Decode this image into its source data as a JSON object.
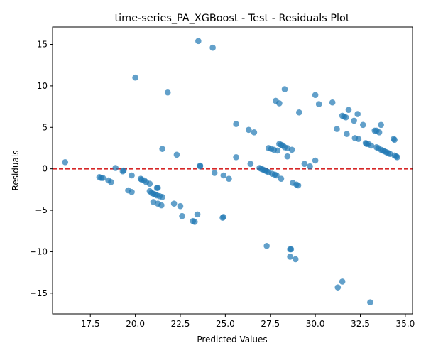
{
  "chart_data": {
    "type": "scatter",
    "title": "time-series_PA_XGBoost - Test - Residuals Plot",
    "xlabel": "Predicted Values",
    "ylabel": "Residuals",
    "xlim": [
      15.4,
      35.4
    ],
    "ylim": [
      -17.5,
      17.1
    ],
    "x_ticks": [
      17.5,
      20.0,
      22.5,
      25.0,
      27.5,
      30.0,
      32.5,
      35.0
    ],
    "x_tick_labels": [
      "17.5",
      "20.0",
      "22.5",
      "25.0",
      "27.5",
      "30.0",
      "32.5",
      "35.0"
    ],
    "y_ticks": [
      -15,
      -10,
      -5,
      0,
      5,
      10,
      15
    ],
    "y_tick_labels": [
      "−15",
      "−10",
      "−5",
      "0",
      "5",
      "10",
      "15"
    ],
    "grid": false,
    "reference_line": {
      "y": 0,
      "color": "#d62728",
      "style": "dashed"
    },
    "marker_color": "#1f77b4",
    "marker_opacity": 0.7,
    "points": [
      [
        16.1,
        0.8
      ],
      [
        18.0,
        -1.0
      ],
      [
        18.1,
        -1.1
      ],
      [
        18.2,
        -1.1
      ],
      [
        18.5,
        -1.4
      ],
      [
        18.65,
        -1.6
      ],
      [
        18.9,
        0.1
      ],
      [
        19.3,
        -0.3
      ],
      [
        19.35,
        -0.2
      ],
      [
        19.6,
        -2.6
      ],
      [
        19.8,
        -2.8
      ],
      [
        19.8,
        -0.8
      ],
      [
        20.0,
        11.0
      ],
      [
        20.3,
        -1.2
      ],
      [
        20.35,
        -1.3
      ],
      [
        20.5,
        -1.4
      ],
      [
        20.6,
        -1.6
      ],
      [
        20.8,
        -1.8
      ],
      [
        20.8,
        -2.7
      ],
      [
        20.9,
        -2.9
      ],
      [
        21.0,
        -3.0
      ],
      [
        21.1,
        -3.1
      ],
      [
        21.2,
        -3.2
      ],
      [
        21.35,
        -3.3
      ],
      [
        21.5,
        -3.4
      ],
      [
        21.0,
        -4.0
      ],
      [
        21.25,
        -4.2
      ],
      [
        21.45,
        -4.4
      ],
      [
        21.25,
        -2.3
      ],
      [
        21.2,
        -2.3
      ],
      [
        21.5,
        2.4
      ],
      [
        21.8,
        9.2
      ],
      [
        22.15,
        -4.2
      ],
      [
        22.3,
        1.7
      ],
      [
        22.5,
        -4.5
      ],
      [
        22.6,
        -5.7
      ],
      [
        23.2,
        -6.3
      ],
      [
        23.3,
        -6.4
      ],
      [
        23.45,
        -5.5
      ],
      [
        23.5,
        15.4
      ],
      [
        23.6,
        0.3
      ],
      [
        23.6,
        0.4
      ],
      [
        24.3,
        14.6
      ],
      [
        24.4,
        -0.5
      ],
      [
        24.85,
        -5.9
      ],
      [
        24.9,
        -5.8
      ],
      [
        24.9,
        -0.8
      ],
      [
        25.2,
        -1.2
      ],
      [
        25.6,
        5.4
      ],
      [
        25.6,
        1.4
      ],
      [
        26.3,
        4.7
      ],
      [
        26.4,
        0.6
      ],
      [
        26.6,
        4.4
      ],
      [
        26.9,
        0.1
      ],
      [
        27.0,
        0.0
      ],
      [
        27.1,
        -0.1
      ],
      [
        27.2,
        -0.2
      ],
      [
        27.3,
        -0.3
      ],
      [
        27.4,
        -0.4
      ],
      [
        27.3,
        -9.3
      ],
      [
        27.4,
        2.5
      ],
      [
        27.55,
        2.4
      ],
      [
        27.7,
        2.3
      ],
      [
        27.9,
        2.2
      ],
      [
        27.6,
        -0.6
      ],
      [
        27.75,
        -0.7
      ],
      [
        27.85,
        -0.8
      ],
      [
        28.1,
        -1.2
      ],
      [
        27.8,
        8.2
      ],
      [
        28.0,
        7.9
      ],
      [
        28.0,
        3.0
      ],
      [
        28.1,
        2.9
      ],
      [
        28.2,
        2.8
      ],
      [
        28.3,
        2.6
      ],
      [
        28.45,
        2.5
      ],
      [
        28.3,
        9.6
      ],
      [
        28.45,
        1.5
      ],
      [
        28.6,
        -9.7
      ],
      [
        28.65,
        -9.7
      ],
      [
        28.6,
        -10.6
      ],
      [
        28.9,
        -10.9
      ],
      [
        28.7,
        2.3
      ],
      [
        28.75,
        -1.7
      ],
      [
        28.95,
        -1.9
      ],
      [
        29.05,
        -2.0
      ],
      [
        29.1,
        6.8
      ],
      [
        29.4,
        0.6
      ],
      [
        29.7,
        0.3
      ],
      [
        30.0,
        8.9
      ],
      [
        30.0,
        1.0
      ],
      [
        30.2,
        7.8
      ],
      [
        30.95,
        8.0
      ],
      [
        31.2,
        4.8
      ],
      [
        31.25,
        -14.3
      ],
      [
        31.5,
        6.4
      ],
      [
        31.6,
        6.3
      ],
      [
        31.7,
        6.2
      ],
      [
        31.5,
        -13.6
      ],
      [
        31.75,
        4.2
      ],
      [
        31.85,
        7.1
      ],
      [
        32.15,
        5.8
      ],
      [
        32.2,
        3.7
      ],
      [
        32.4,
        3.6
      ],
      [
        32.35,
        6.6
      ],
      [
        32.65,
        5.3
      ],
      [
        32.8,
        3.1
      ],
      [
        32.85,
        3.0
      ],
      [
        32.95,
        3.0
      ],
      [
        33.1,
        2.8
      ],
      [
        33.05,
        -16.1
      ],
      [
        33.3,
        4.6
      ],
      [
        33.4,
        4.6
      ],
      [
        33.55,
        4.4
      ],
      [
        33.65,
        5.3
      ],
      [
        33.4,
        2.6
      ],
      [
        33.5,
        2.5
      ],
      [
        33.65,
        2.3
      ],
      [
        33.75,
        2.2
      ],
      [
        33.85,
        2.1
      ],
      [
        33.95,
        2.0
      ],
      [
        34.05,
        1.9
      ],
      [
        34.15,
        1.8
      ],
      [
        34.35,
        3.6
      ],
      [
        34.4,
        3.5
      ],
      [
        34.4,
        1.6
      ],
      [
        34.5,
        1.5
      ],
      [
        34.55,
        1.4
      ]
    ]
  }
}
